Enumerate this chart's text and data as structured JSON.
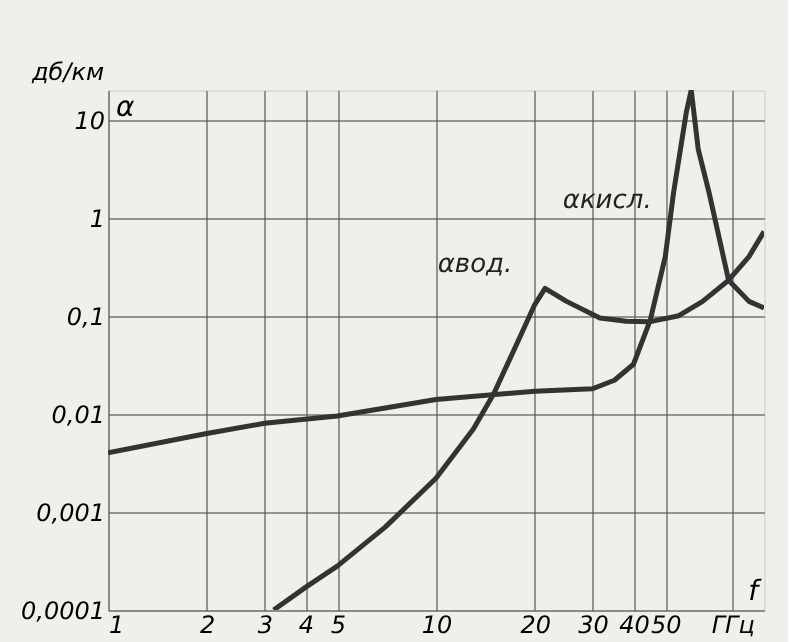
{
  "chart_data": {
    "type": "line",
    "ylabel": "дб/км",
    "annotations": [
      "α",
      "f"
    ],
    "log": "xy",
    "grid": true,
    "xlim": [
      1,
      100
    ],
    "ylim": [
      0.0001,
      20
    ],
    "xticks": [
      1,
      2,
      3,
      4,
      5,
      10,
      20,
      30,
      40,
      50,
      {
        "value": 80,
        "label": "ГГц"
      }
    ],
    "yticks": [
      {
        "value": 0.0001,
        "label": "0,0001"
      },
      {
        "value": 0.001,
        "label": "0,001"
      },
      {
        "value": 0.01,
        "label": "0,01"
      },
      {
        "value": 0.1,
        "label": "0,1"
      },
      1,
      10
    ],
    "series": [
      {
        "name": "αвод.",
        "color": "#333333",
        "x": [
          3.2,
          4,
          5,
          7,
          10,
          13,
          15,
          18,
          20,
          21.5,
          25,
          31.6,
          38,
          45,
          55,
          65,
          78,
          90,
          100
        ],
        "values": [
          0.0001,
          0.00017,
          0.00028,
          0.0007,
          0.0022,
          0.007,
          0.016,
          0.06,
          0.13,
          0.19,
          0.14,
          0.095,
          0.088,
          0.087,
          0.1,
          0.14,
          0.23,
          0.4,
          0.72
        ]
      },
      {
        "name": "αкисл.",
        "color": "#333333",
        "x": [
          1,
          2,
          3,
          5,
          10,
          20,
          30,
          35,
          40,
          45,
          50,
          53,
          58,
          60,
          63,
          68,
          78,
          90,
          100
        ],
        "values": [
          0.004,
          0.0063,
          0.008,
          0.0095,
          0.014,
          0.017,
          0.018,
          0.022,
          0.032,
          0.09,
          0.4,
          1.8,
          12,
          20,
          5,
          1.8,
          0.23,
          0.14,
          0.12
        ]
      }
    ]
  }
}
